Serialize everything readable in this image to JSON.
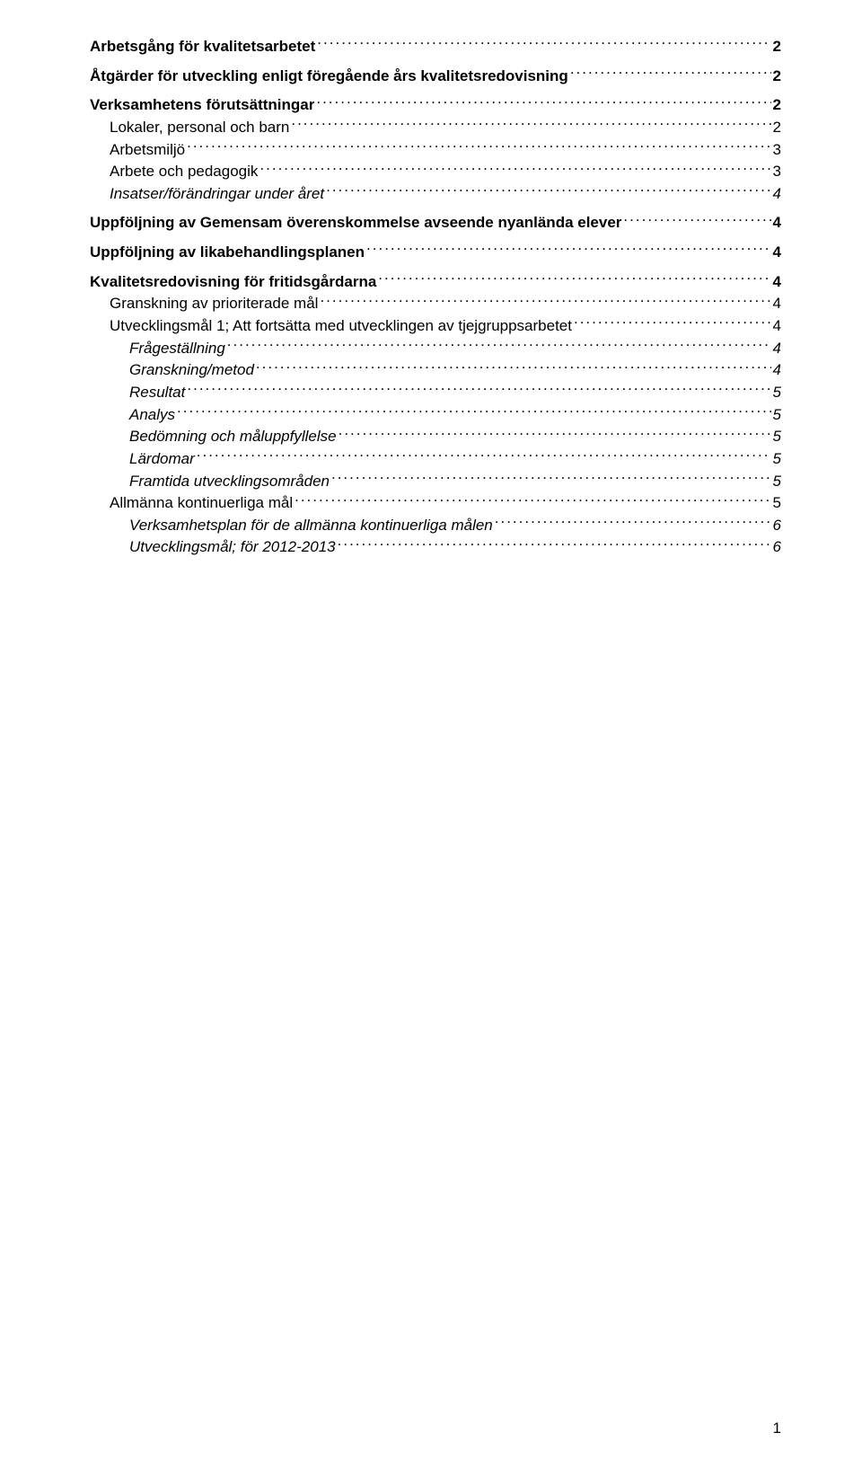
{
  "toc": [
    {
      "label": "Arbetsgång för kvalitetsarbetet",
      "page": "2",
      "indent": 0,
      "bold": true,
      "italic": false,
      "gapAfter": true
    },
    {
      "label": "Åtgärder för utveckling enligt föregående års kvalitetsredovisning",
      "page": "2",
      "indent": 0,
      "bold": true,
      "italic": false,
      "gapAfter": true
    },
    {
      "label": "Verksamhetens förutsättningar",
      "page": "2",
      "indent": 0,
      "bold": true,
      "italic": false,
      "gapAfter": false
    },
    {
      "label": "Lokaler, personal och barn",
      "page": "2",
      "indent": 1,
      "bold": false,
      "italic": false,
      "gapAfter": false
    },
    {
      "label": "Arbetsmiljö",
      "page": "3",
      "indent": 1,
      "bold": false,
      "italic": false,
      "gapAfter": false
    },
    {
      "label": "Arbete och pedagogik",
      "page": "3",
      "indent": 1,
      "bold": false,
      "italic": false,
      "gapAfter": false
    },
    {
      "label": "Insatser/förändringar under året",
      "page": "4",
      "indent": 1,
      "bold": false,
      "italic": true,
      "gapAfter": true
    },
    {
      "label": "Uppföljning av Gemensam överenskommelse avseende nyanlända elever",
      "page": "4",
      "indent": 0,
      "bold": true,
      "italic": false,
      "gapAfter": true
    },
    {
      "label": "Uppföljning av likabehandlingsplanen",
      "page": "4",
      "indent": 0,
      "bold": true,
      "italic": false,
      "gapAfter": true
    },
    {
      "label": "Kvalitetsredovisning för fritidsgårdarna",
      "page": "4",
      "indent": 0,
      "bold": true,
      "italic": false,
      "gapAfter": false
    },
    {
      "label": "Granskning av prioriterade mål",
      "page": "4",
      "indent": 1,
      "bold": false,
      "italic": false,
      "gapAfter": false
    },
    {
      "label": "Utvecklingsmål 1; Att fortsätta med utvecklingen av tjejgruppsarbetet",
      "page": "4",
      "indent": 1,
      "bold": false,
      "italic": false,
      "gapAfter": false
    },
    {
      "label": "Frågeställning",
      "page": "4",
      "indent": 2,
      "bold": false,
      "italic": true,
      "gapAfter": false
    },
    {
      "label": "Granskning/metod",
      "page": "4",
      "indent": 2,
      "bold": false,
      "italic": true,
      "gapAfter": false
    },
    {
      "label": "Resultat",
      "page": "5",
      "indent": 2,
      "bold": false,
      "italic": true,
      "gapAfter": false
    },
    {
      "label": "Analys",
      "page": "5",
      "indent": 2,
      "bold": false,
      "italic": true,
      "gapAfter": false
    },
    {
      "label": "Bedömning och måluppfyllelse",
      "page": "5",
      "indent": 2,
      "bold": false,
      "italic": true,
      "gapAfter": false
    },
    {
      "label": "Lärdomar",
      "page": "5",
      "indent": 2,
      "bold": false,
      "italic": true,
      "gapAfter": false
    },
    {
      "label": "Framtida utvecklingsområden",
      "page": "5",
      "indent": 2,
      "bold": false,
      "italic": true,
      "gapAfter": false
    },
    {
      "label": "Allmänna kontinuerliga mål",
      "page": "5",
      "indent": 1,
      "bold": false,
      "italic": false,
      "gapAfter": false
    },
    {
      "label": "Verksamhetsplan för de allmänna kontinuerliga målen",
      "page": "6",
      "indent": 2,
      "bold": false,
      "italic": true,
      "gapAfter": false
    },
    {
      "label": "Utvecklingsmål; för 2012-2013",
      "page": "6",
      "indent": 2,
      "bold": false,
      "italic": true,
      "gapAfter": false
    }
  ],
  "footerPage": "1"
}
